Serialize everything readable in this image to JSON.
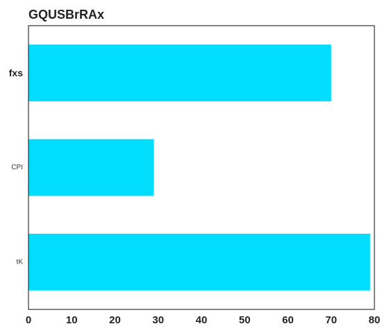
{
  "chart_data": {
    "type": "bar",
    "orientation": "horizontal",
    "title": "GQUSBrRAx",
    "categories": [
      "fxs",
      "CPI",
      "tK"
    ],
    "values": [
      70,
      29,
      79
    ],
    "xlim": [
      0,
      80
    ],
    "xticks": [
      0,
      10,
      20,
      30,
      40,
      50,
      60,
      70,
      80
    ],
    "xlabel": "",
    "ylabel": "",
    "grid": false,
    "bar_color": "#00DDFF"
  }
}
